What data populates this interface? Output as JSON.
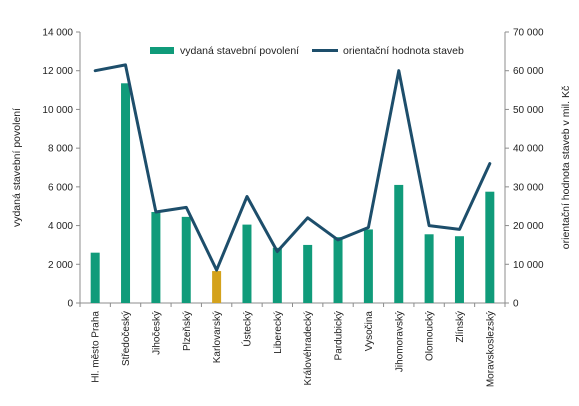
{
  "colors": {
    "bar": "#109b7a",
    "bar_highlight": "#d4a21c",
    "line": "#1d4e6b",
    "axis": "#8c8c8c"
  },
  "chart_data": {
    "type": "bar",
    "categories": [
      "Hl. město Praha",
      "Středočeský",
      "Jihočeský",
      "Plzeňský",
      "Karlovarský",
      "Ústecký",
      "Liberecký",
      "Královéhradecký",
      "Pardubický",
      "Vysočina",
      "Jihomoravský",
      "Olomoucký",
      "Zlínský",
      "Moravskoslezský"
    ],
    "series": [
      {
        "name": "vydaná stavební povolení",
        "type": "bar",
        "axis": "left",
        "highlight_index": 4,
        "values": [
          2600,
          11350,
          4700,
          4450,
          1650,
          4050,
          2850,
          3000,
          3400,
          3800,
          6100,
          3550,
          3450,
          5750
        ]
      },
      {
        "name": "orientační hodnota staveb",
        "type": "line",
        "axis": "right",
        "values": [
          60000,
          61500,
          23500,
          24700,
          8500,
          27500,
          13300,
          22000,
          16300,
          19500,
          60000,
          20000,
          19000,
          36000
        ]
      }
    ],
    "ylabel": "vydaná stavební povolení",
    "ylabel_right": "orientační hodnota staveb v mil. Kč",
    "ylim": [
      0,
      14000
    ],
    "ylim_right": [
      0,
      70000
    ],
    "yticks": [
      "0",
      "2 000",
      "4 000",
      "6 000",
      "8 000",
      "10 000",
      "12 000",
      "14 000"
    ],
    "yticks_right": [
      "0",
      "10 000",
      "20 000",
      "30 000",
      "40 000",
      "50 000",
      "60 000",
      "70 000"
    ],
    "grid": false,
    "legend_position": "top-center"
  }
}
